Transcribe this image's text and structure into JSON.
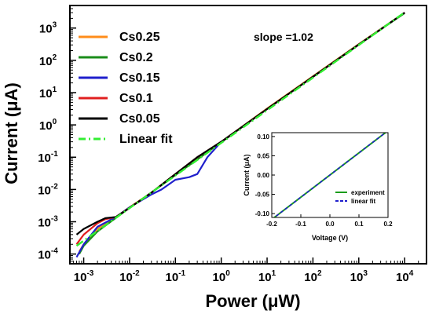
{
  "chart_data": [
    {
      "type": "line",
      "xlabel_prefix": "Power (",
      "xlabel_unit": "μW",
      "xlabel_suffix": ")",
      "ylabel_prefix": "Current (",
      "ylabel_unit": "μA",
      "ylabel_suffix": ")",
      "x_scale": "log",
      "y_scale": "log",
      "xlim": [
        0.0005,
        30000
      ],
      "ylim": [
        5e-05,
        5000
      ],
      "x_ticks": [
        {
          "value": 0.001,
          "base": "10",
          "exp": "-3"
        },
        {
          "value": 0.01,
          "base": "10",
          "exp": "-2"
        },
        {
          "value": 0.1,
          "base": "10",
          "exp": "-1"
        },
        {
          "value": 1,
          "base": "10",
          "exp": "0"
        },
        {
          "value": 10,
          "base": "10",
          "exp": "1"
        },
        {
          "value": 100,
          "base": "10",
          "exp": "2"
        },
        {
          "value": 1000,
          "base": "10",
          "exp": "3"
        },
        {
          "value": 10000,
          "base": "10",
          "exp": "4"
        }
      ],
      "y_ticks": [
        {
          "value": 0.0001,
          "base": "10",
          "exp": "-4"
        },
        {
          "value": 0.001,
          "base": "10",
          "exp": "-3"
        },
        {
          "value": 0.01,
          "base": "10",
          "exp": "-2"
        },
        {
          "value": 0.1,
          "base": "10",
          "exp": "-1"
        },
        {
          "value": 1,
          "base": "10",
          "exp": "0"
        },
        {
          "value": 10,
          "base": "10",
          "exp": "1"
        },
        {
          "value": 100,
          "base": "10",
          "exp": "2"
        },
        {
          "value": 1000,
          "base": "10",
          "exp": "3"
        }
      ],
      "annotation": "slope =1.02",
      "legend_position": "top-left",
      "series": [
        {
          "name": "Cs0.25",
          "color": "#ff8c1a",
          "style": "solid",
          "x": [
            0.0008,
            0.001,
            0.002,
            0.005,
            0.01,
            0.03,
            0.1,
            0.3,
            1,
            10,
            100,
            1000,
            10000
          ],
          "y": [
            0.00012,
            0.0002,
            0.0006,
            0.0014,
            0.0028,
            0.008,
            0.03,
            0.09,
            0.3,
            3.2,
            32,
            320,
            3000
          ]
        },
        {
          "name": "Cs0.2",
          "color": "#1a8c1a",
          "style": "solid",
          "x": [
            0.0008,
            0.001,
            0.002,
            0.005,
            0.01,
            0.03,
            0.1,
            0.3,
            1,
            10,
            100,
            1000,
            10000
          ],
          "y": [
            0.0001,
            0.00018,
            0.0005,
            0.0013,
            0.0027,
            0.008,
            0.028,
            0.085,
            0.29,
            3.1,
            31,
            310,
            2900
          ]
        },
        {
          "name": "Cs0.15",
          "color": "#1f1fcc",
          "style": "solid",
          "x": [
            0.0007,
            0.001,
            0.002,
            0.005,
            0.01,
            0.03,
            0.05,
            0.1,
            0.2,
            0.3,
            0.5,
            1,
            10,
            100,
            1000,
            10000
          ],
          "y": [
            8e-05,
            0.0002,
            0.0007,
            0.0014,
            0.0028,
            0.007,
            0.01,
            0.02,
            0.024,
            0.03,
            0.1,
            0.3,
            3.1,
            31,
            310,
            3000
          ]
        },
        {
          "name": "Cs0.1",
          "color": "#e01f1f",
          "style": "solid",
          "x": [
            0.0007,
            0.001,
            0.002,
            0.003,
            0.005,
            0.01,
            0.03,
            0.1,
            0.3,
            1,
            10,
            100,
            1000,
            10000
          ],
          "y": [
            0.0002,
            0.0004,
            0.0009,
            0.0012,
            0.0014,
            0.0027,
            0.008,
            0.03,
            0.1,
            0.3,
            3.1,
            31,
            310,
            3000
          ]
        },
        {
          "name": "Cs0.05",
          "color": "#000000",
          "style": "solid",
          "x": [
            0.0007,
            0.001,
            0.002,
            0.003,
            0.005,
            0.01,
            0.03,
            0.1,
            0.3,
            1,
            10,
            100,
            1000,
            10000
          ],
          "y": [
            0.0004,
            0.0006,
            0.001,
            0.0013,
            0.0014,
            0.0027,
            0.008,
            0.03,
            0.1,
            0.3,
            3.1,
            31,
            310,
            3000
          ]
        },
        {
          "name": "Linear fit",
          "color": "#33ee33",
          "style": "dashdot",
          "x": [
            0.0007,
            10000
          ],
          "y": [
            0.00018,
            3050
          ]
        }
      ]
    },
    {
      "type": "line",
      "inset": true,
      "xlabel": "Voltage (V)",
      "ylabel_prefix": "Current (",
      "ylabel_unit": "μA",
      "ylabel_suffix": ")",
      "xlim": [
        -0.2,
        0.2
      ],
      "ylim": [
        -0.11,
        0.11
      ],
      "x_ticks": [
        "-0.2",
        "-0.1",
        "0.0",
        "0.1",
        "0.2"
      ],
      "y_ticks": [
        "-0.10",
        "-0.05",
        "0.00",
        "0.05",
        "0.10"
      ],
      "legend_position": "bottom-right",
      "series": [
        {
          "name": "experiment",
          "color": "#1a9c1a",
          "style": "solid",
          "x": [
            -0.2,
            0.2
          ],
          "y": [
            -0.115,
            0.115
          ]
        },
        {
          "name": "linear fit",
          "color": "#1f1fcc",
          "style": "dashed",
          "x": [
            -0.2,
            0.2
          ],
          "y": [
            -0.115,
            0.115
          ]
        }
      ]
    }
  ]
}
